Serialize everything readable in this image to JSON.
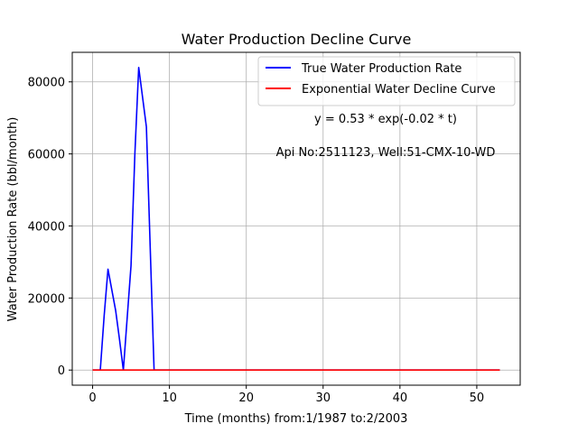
{
  "chart_data": {
    "type": "line",
    "title": "Water Production Decline Curve",
    "xlabel": "Time (months) from:1/1987 to:2/2003",
    "ylabel": "Water Production Rate (bbl/month)",
    "xlim": [
      -2.65,
      55.65
    ],
    "ylim": [
      -4200,
      88200
    ],
    "xticks": [
      0,
      10,
      20,
      30,
      40,
      50
    ],
    "yticks": [
      0,
      20000,
      40000,
      60000,
      80000
    ],
    "grid": true,
    "legend_position": "top-right",
    "series": [
      {
        "name": "True Water Production Rate",
        "color": "#0000ff",
        "x": [
          0,
          1,
          1.5,
          2,
          3,
          3.5,
          4,
          5,
          5.5,
          6,
          7,
          8,
          9,
          10,
          11,
          12,
          13,
          14,
          15,
          16,
          17,
          18,
          19,
          20,
          21,
          22,
          23,
          24,
          25,
          26,
          27,
          28,
          29,
          30,
          31,
          32,
          33,
          34,
          35,
          36,
          37,
          38,
          39,
          40,
          41,
          42,
          43,
          44,
          45,
          46,
          47,
          48,
          49,
          50,
          51,
          52,
          53
        ],
        "y": [
          0,
          0,
          15000,
          28000,
          16500,
          8500,
          0,
          29000,
          60000,
          84000,
          67500,
          0,
          0,
          0,
          0,
          0,
          0,
          0,
          0,
          0,
          0,
          0,
          0,
          0,
          0,
          0,
          0,
          0,
          0,
          0,
          0,
          0,
          0,
          0,
          0,
          0,
          0,
          0,
          0,
          0,
          0,
          0,
          0,
          0,
          0,
          0,
          0,
          0,
          0,
          0,
          0,
          0,
          0,
          0,
          0,
          0,
          0
        ]
      },
      {
        "name": "Exponential Water Decline Curve",
        "color": "#ff0000",
        "x": [
          0,
          10,
          20,
          30,
          40,
          53
        ],
        "y": [
          0.53,
          0.43,
          0.36,
          0.29,
          0.24,
          0.18
        ]
      }
    ],
    "annotations": [
      "y = 0.53 * exp(-0.02 * t)",
      "Api No:2511123, Well:51-CMX-10-WD"
    ]
  }
}
